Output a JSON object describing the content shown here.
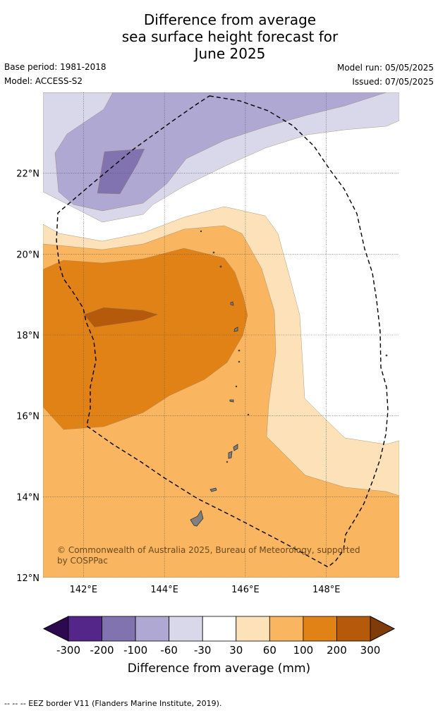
{
  "title": {
    "line1": "Difference from average",
    "line2": "sea surface height forecast for",
    "line3": "June 2025"
  },
  "meta": {
    "base_period": "Base period: 1981-2018",
    "model": "Model: ACCESS-S2",
    "model_run": "Model run: 05/05/2025",
    "issued": "Issued: 07/05/2025"
  },
  "map": {
    "lon_range": [
      141,
      149.8
    ],
    "lat_range": [
      12,
      24
    ],
    "lon_ticks": [
      "142°E",
      "144°E",
      "146°E",
      "148°E"
    ],
    "lon_tick_values": [
      142,
      144,
      146,
      148
    ],
    "lat_ticks": [
      "12°N",
      "14°N",
      "16°N",
      "18°N",
      "20°N",
      "22°N"
    ],
    "lat_tick_values": [
      12,
      14,
      16,
      18,
      20,
      22
    ],
    "copyright": "© Commonwealth of Australia 2025, Bureau of Meteorology, supported by COSPPac",
    "colors": {
      "n300": "#2d0a50",
      "n200": "#54268a",
      "n100": "#8073b0",
      "n60": "#aea8d2",
      "n30": "#d8d8ea",
      "zero": "#ffffff",
      "p30": "#fde1b9",
      "p60": "#f9b55f",
      "p100": "#e08215",
      "p200": "#b45a0a",
      "p300": "#7f3b08"
    }
  },
  "colorbar": {
    "ticks": [
      "-300",
      "-200",
      "-100",
      "-60",
      "-30",
      "30",
      "60",
      "100",
      "200",
      "300"
    ],
    "label": "Difference from average (mm)"
  },
  "footer": "--  --  -- EEZ border V11 (Flanders Marine Institute, 2019)."
}
